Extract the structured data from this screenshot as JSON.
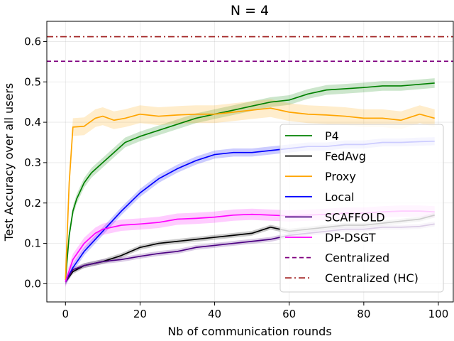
{
  "chart_data": {
    "type": "line",
    "title": "N = 4",
    "xlabel": "Nb of communication rounds",
    "ylabel": "Test Accuracy over all users",
    "xlim": [
      -5,
      104
    ],
    "ylim": [
      -0.045,
      0.65
    ],
    "xticks": [
      0,
      20,
      40,
      60,
      80,
      100
    ],
    "yticks": [
      0.0,
      0.1,
      0.2,
      0.3,
      0.4,
      0.5,
      0.6
    ],
    "ytick_labels": [
      "0.0",
      "0.1",
      "0.2",
      "0.3",
      "0.4",
      "0.5",
      "0.6"
    ],
    "grid": true,
    "legend_position": "center-right",
    "series": [
      {
        "name": "P4",
        "color": "#008000",
        "style": "solid",
        "band": 0.012,
        "points": [
          [
            0,
            0.01
          ],
          [
            1,
            0.12
          ],
          [
            2,
            0.18
          ],
          [
            3,
            0.21
          ],
          [
            5,
            0.25
          ],
          [
            7,
            0.275
          ],
          [
            10,
            0.3
          ],
          [
            13,
            0.325
          ],
          [
            16,
            0.35
          ],
          [
            20,
            0.365
          ],
          [
            25,
            0.38
          ],
          [
            30,
            0.395
          ],
          [
            35,
            0.41
          ],
          [
            40,
            0.42
          ],
          [
            45,
            0.43
          ],
          [
            50,
            0.44
          ],
          [
            55,
            0.45
          ],
          [
            60,
            0.455
          ],
          [
            65,
            0.47
          ],
          [
            70,
            0.48
          ],
          [
            75,
            0.483
          ],
          [
            80,
            0.486
          ],
          [
            85,
            0.49
          ],
          [
            90,
            0.49
          ],
          [
            95,
            0.494
          ],
          [
            99,
            0.497
          ]
        ]
      },
      {
        "name": "FedAvg",
        "color": "#000000",
        "style": "solid",
        "band": 0.006,
        "points": [
          [
            0,
            0.005
          ],
          [
            2,
            0.03
          ],
          [
            5,
            0.045
          ],
          [
            10,
            0.055
          ],
          [
            15,
            0.07
          ],
          [
            20,
            0.09
          ],
          [
            25,
            0.1
          ],
          [
            30,
            0.105
          ],
          [
            35,
            0.11
          ],
          [
            40,
            0.115
          ],
          [
            45,
            0.12
          ],
          [
            50,
            0.125
          ],
          [
            55,
            0.14
          ],
          [
            60,
            0.13
          ],
          [
            65,
            0.135
          ],
          [
            70,
            0.14
          ],
          [
            75,
            0.145
          ],
          [
            80,
            0.145
          ],
          [
            85,
            0.15
          ],
          [
            90,
            0.155
          ],
          [
            95,
            0.16
          ],
          [
            99,
            0.17
          ]
        ]
      },
      {
        "name": "Proxy",
        "color": "#FFA500",
        "style": "solid",
        "band": 0.022,
        "points": [
          [
            0,
            0.01
          ],
          [
            1,
            0.25
          ],
          [
            2,
            0.388
          ],
          [
            5,
            0.39
          ],
          [
            8,
            0.41
          ],
          [
            10,
            0.415
          ],
          [
            13,
            0.405
          ],
          [
            16,
            0.41
          ],
          [
            20,
            0.42
          ],
          [
            25,
            0.415
          ],
          [
            30,
            0.418
          ],
          [
            35,
            0.42
          ],
          [
            40,
            0.42
          ],
          [
            45,
            0.425
          ],
          [
            50,
            0.43
          ],
          [
            55,
            0.435
          ],
          [
            60,
            0.425
          ],
          [
            65,
            0.42
          ],
          [
            70,
            0.418
          ],
          [
            75,
            0.415
          ],
          [
            80,
            0.41
          ],
          [
            85,
            0.41
          ],
          [
            90,
            0.405
          ],
          [
            95,
            0.42
          ],
          [
            99,
            0.41
          ]
        ]
      },
      {
        "name": "Local",
        "color": "#0000FF",
        "style": "solid",
        "band": 0.01,
        "points": [
          [
            0,
            0.005
          ],
          [
            2,
            0.04
          ],
          [
            5,
            0.08
          ],
          [
            10,
            0.13
          ],
          [
            15,
            0.18
          ],
          [
            20,
            0.225
          ],
          [
            25,
            0.26
          ],
          [
            30,
            0.285
          ],
          [
            35,
            0.305
          ],
          [
            40,
            0.32
          ],
          [
            45,
            0.325
          ],
          [
            50,
            0.325
          ],
          [
            55,
            0.33
          ],
          [
            60,
            0.335
          ],
          [
            65,
            0.34
          ],
          [
            70,
            0.34
          ],
          [
            75,
            0.345
          ],
          [
            80,
            0.345
          ],
          [
            85,
            0.35
          ],
          [
            90,
            0.35
          ],
          [
            95,
            0.352
          ],
          [
            99,
            0.353
          ]
        ]
      },
      {
        "name": "SCAFFOLD",
        "color": "#4B0082",
        "style": "solid",
        "band": 0.006,
        "points": [
          [
            0,
            0.005
          ],
          [
            2,
            0.035
          ],
          [
            5,
            0.045
          ],
          [
            10,
            0.055
          ],
          [
            15,
            0.06
          ],
          [
            20,
            0.068
          ],
          [
            25,
            0.075
          ],
          [
            30,
            0.08
          ],
          [
            35,
            0.09
          ],
          [
            40,
            0.095
          ],
          [
            45,
            0.1
          ],
          [
            50,
            0.105
          ],
          [
            55,
            0.11
          ],
          [
            60,
            0.12
          ],
          [
            65,
            0.125
          ],
          [
            70,
            0.13
          ],
          [
            75,
            0.135
          ],
          [
            80,
            0.135
          ],
          [
            85,
            0.14
          ],
          [
            90,
            0.14
          ],
          [
            95,
            0.142
          ],
          [
            99,
            0.148
          ]
        ]
      },
      {
        "name": "DP-DSGT",
        "color": "#FF00FF",
        "style": "solid",
        "band": 0.014,
        "points": [
          [
            0,
            0.005
          ],
          [
            2,
            0.06
          ],
          [
            5,
            0.1
          ],
          [
            8,
            0.125
          ],
          [
            10,
            0.135
          ],
          [
            15,
            0.145
          ],
          [
            20,
            0.148
          ],
          [
            25,
            0.152
          ],
          [
            30,
            0.16
          ],
          [
            35,
            0.162
          ],
          [
            40,
            0.165
          ],
          [
            45,
            0.17
          ],
          [
            50,
            0.172
          ],
          [
            55,
            0.17
          ],
          [
            60,
            0.168
          ],
          [
            65,
            0.17
          ],
          [
            70,
            0.172
          ],
          [
            75,
            0.175
          ],
          [
            80,
            0.175
          ],
          [
            85,
            0.178
          ],
          [
            90,
            0.18
          ],
          [
            95,
            0.18
          ],
          [
            99,
            0.178
          ]
        ]
      },
      {
        "name": "Centralized",
        "color": "#800080",
        "style": "dashed",
        "band": 0,
        "points": [
          [
            -5,
            0.551
          ],
          [
            104,
            0.551
          ]
        ]
      },
      {
        "name": "Centralized (HC)",
        "color": "#A52A2A",
        "style": "dashdot",
        "band": 0,
        "points": [
          [
            -5,
            0.612
          ],
          [
            104,
            0.612
          ]
        ]
      }
    ]
  }
}
